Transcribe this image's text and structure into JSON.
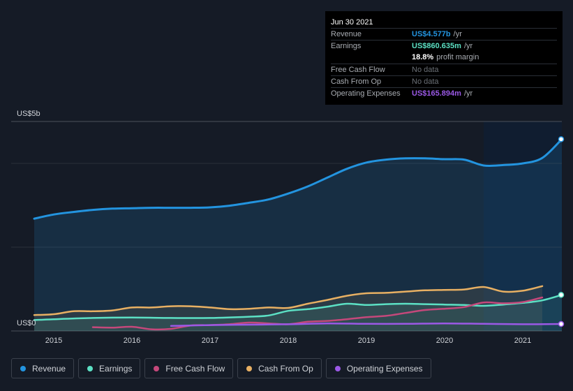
{
  "chart_data": {
    "type": "area",
    "ylabel_top": "US$5b",
    "ylabel_bottom": "US$0",
    "ylim": [
      0,
      5
    ],
    "x_ticks": [
      "2015",
      "2016",
      "2017",
      "2018",
      "2019",
      "2020",
      "2021"
    ],
    "x_tick_values": [
      2015,
      2016,
      2017,
      2018,
      2019,
      2020,
      2021
    ],
    "xlim": [
      2014.57,
      2021.5
    ],
    "highlight_start": 2020.5,
    "series": [
      {
        "name": "Revenue",
        "color": "#2394df",
        "filled": true,
        "points": [
          [
            2014.75,
            2.68
          ],
          [
            2015.0,
            2.78
          ],
          [
            2015.25,
            2.84
          ],
          [
            2015.5,
            2.89
          ],
          [
            2015.75,
            2.92
          ],
          [
            2016.0,
            2.93
          ],
          [
            2016.25,
            2.94
          ],
          [
            2016.5,
            2.94
          ],
          [
            2016.75,
            2.94
          ],
          [
            2017.0,
            2.95
          ],
          [
            2017.25,
            2.99
          ],
          [
            2017.5,
            3.06
          ],
          [
            2017.75,
            3.14
          ],
          [
            2018.0,
            3.28
          ],
          [
            2018.25,
            3.45
          ],
          [
            2018.5,
            3.66
          ],
          [
            2018.75,
            3.87
          ],
          [
            2019.0,
            4.02
          ],
          [
            2019.25,
            4.09
          ],
          [
            2019.5,
            4.12
          ],
          [
            2019.75,
            4.12
          ],
          [
            2020.0,
            4.1
          ],
          [
            2020.25,
            4.09
          ],
          [
            2020.5,
            3.95
          ],
          [
            2020.75,
            3.96
          ],
          [
            2021.0,
            4.0
          ],
          [
            2021.25,
            4.13
          ],
          [
            2021.5,
            4.577
          ]
        ]
      },
      {
        "name": "Earnings",
        "color": "#5ce0c4",
        "filled": true,
        "points": [
          [
            2014.75,
            0.26
          ],
          [
            2015.0,
            0.28
          ],
          [
            2015.5,
            0.31
          ],
          [
            2016.0,
            0.32
          ],
          [
            2016.5,
            0.31
          ],
          [
            2017.0,
            0.31
          ],
          [
            2017.5,
            0.34
          ],
          [
            2017.75,
            0.37
          ],
          [
            2018.0,
            0.48
          ],
          [
            2018.25,
            0.52
          ],
          [
            2018.5,
            0.58
          ],
          [
            2018.75,
            0.65
          ],
          [
            2019.0,
            0.62
          ],
          [
            2019.25,
            0.64
          ],
          [
            2019.5,
            0.65
          ],
          [
            2019.75,
            0.64
          ],
          [
            2020.0,
            0.63
          ],
          [
            2020.25,
            0.62
          ],
          [
            2020.5,
            0.6
          ],
          [
            2020.75,
            0.63
          ],
          [
            2021.0,
            0.67
          ],
          [
            2021.25,
            0.73
          ],
          [
            2021.5,
            0.861
          ]
        ]
      },
      {
        "name": "Free Cash Flow",
        "color": "#c5487b",
        "filled": false,
        "points": [
          [
            2015.5,
            0.09
          ],
          [
            2015.75,
            0.08
          ],
          [
            2016.0,
            0.1
          ],
          [
            2016.25,
            0.04
          ],
          [
            2016.5,
            0.05
          ],
          [
            2016.75,
            0.13
          ],
          [
            2017.0,
            0.14
          ],
          [
            2017.25,
            0.16
          ],
          [
            2017.5,
            0.2
          ],
          [
            2017.75,
            0.18
          ],
          [
            2018.0,
            0.16
          ],
          [
            2018.25,
            0.22
          ],
          [
            2018.5,
            0.24
          ],
          [
            2018.75,
            0.28
          ],
          [
            2019.0,
            0.33
          ],
          [
            2019.25,
            0.36
          ],
          [
            2019.5,
            0.43
          ],
          [
            2019.75,
            0.5
          ],
          [
            2020.0,
            0.53
          ],
          [
            2020.25,
            0.57
          ],
          [
            2020.5,
            0.68
          ],
          [
            2020.75,
            0.66
          ],
          [
            2021.0,
            0.69
          ],
          [
            2021.25,
            0.8
          ]
        ]
      },
      {
        "name": "Cash From Op",
        "color": "#e8b063",
        "filled": true,
        "points": [
          [
            2014.75,
            0.38
          ],
          [
            2015.0,
            0.4
          ],
          [
            2015.25,
            0.47
          ],
          [
            2015.5,
            0.47
          ],
          [
            2015.75,
            0.49
          ],
          [
            2016.0,
            0.56
          ],
          [
            2016.25,
            0.56
          ],
          [
            2016.5,
            0.59
          ],
          [
            2016.75,
            0.59
          ],
          [
            2017.0,
            0.56
          ],
          [
            2017.25,
            0.52
          ],
          [
            2017.5,
            0.53
          ],
          [
            2017.75,
            0.56
          ],
          [
            2018.0,
            0.55
          ],
          [
            2018.25,
            0.65
          ],
          [
            2018.5,
            0.74
          ],
          [
            2018.75,
            0.84
          ],
          [
            2019.0,
            0.9
          ],
          [
            2019.25,
            0.91
          ],
          [
            2019.5,
            0.94
          ],
          [
            2019.75,
            0.97
          ],
          [
            2020.0,
            0.98
          ],
          [
            2020.25,
            0.99
          ],
          [
            2020.5,
            1.05
          ],
          [
            2020.75,
            0.94
          ],
          [
            2021.0,
            0.96
          ],
          [
            2021.25,
            1.07
          ]
        ]
      },
      {
        "name": "Operating Expenses",
        "color": "#9b59e6",
        "filled": false,
        "points": [
          [
            2016.5,
            0.12
          ],
          [
            2017.0,
            0.14
          ],
          [
            2017.5,
            0.15
          ],
          [
            2018.0,
            0.16
          ],
          [
            2018.5,
            0.18
          ],
          [
            2019.0,
            0.17
          ],
          [
            2019.5,
            0.17
          ],
          [
            2020.0,
            0.18
          ],
          [
            2020.5,
            0.17
          ],
          [
            2021.0,
            0.16
          ],
          [
            2021.5,
            0.166
          ]
        ]
      }
    ]
  },
  "tooltip": {
    "date": "Jun 30 2021",
    "rows": [
      {
        "label": "Revenue",
        "value": "US$4.577b",
        "unit": "/yr",
        "color": "#2394df"
      },
      {
        "label": "Earnings",
        "value": "US$860.635m",
        "unit": "/yr",
        "color": "#5ce0c4"
      },
      {
        "label": "",
        "value": "18.8%",
        "unit": "profit margin",
        "color": "#ffffff"
      },
      {
        "label": "Free Cash Flow",
        "value": "No data",
        "unit": "",
        "color": ""
      },
      {
        "label": "Cash From Op",
        "value": "No data",
        "unit": "",
        "color": ""
      },
      {
        "label": "Operating Expenses",
        "value": "US$165.894m",
        "unit": "/yr",
        "color": "#9b59e6"
      }
    ]
  },
  "legend": [
    {
      "label": "Revenue",
      "color": "#2394df"
    },
    {
      "label": "Earnings",
      "color": "#5ce0c4"
    },
    {
      "label": "Free Cash Flow",
      "color": "#c5487b"
    },
    {
      "label": "Cash From Op",
      "color": "#e8b063"
    },
    {
      "label": "Operating Expenses",
      "color": "#9b59e6"
    }
  ]
}
